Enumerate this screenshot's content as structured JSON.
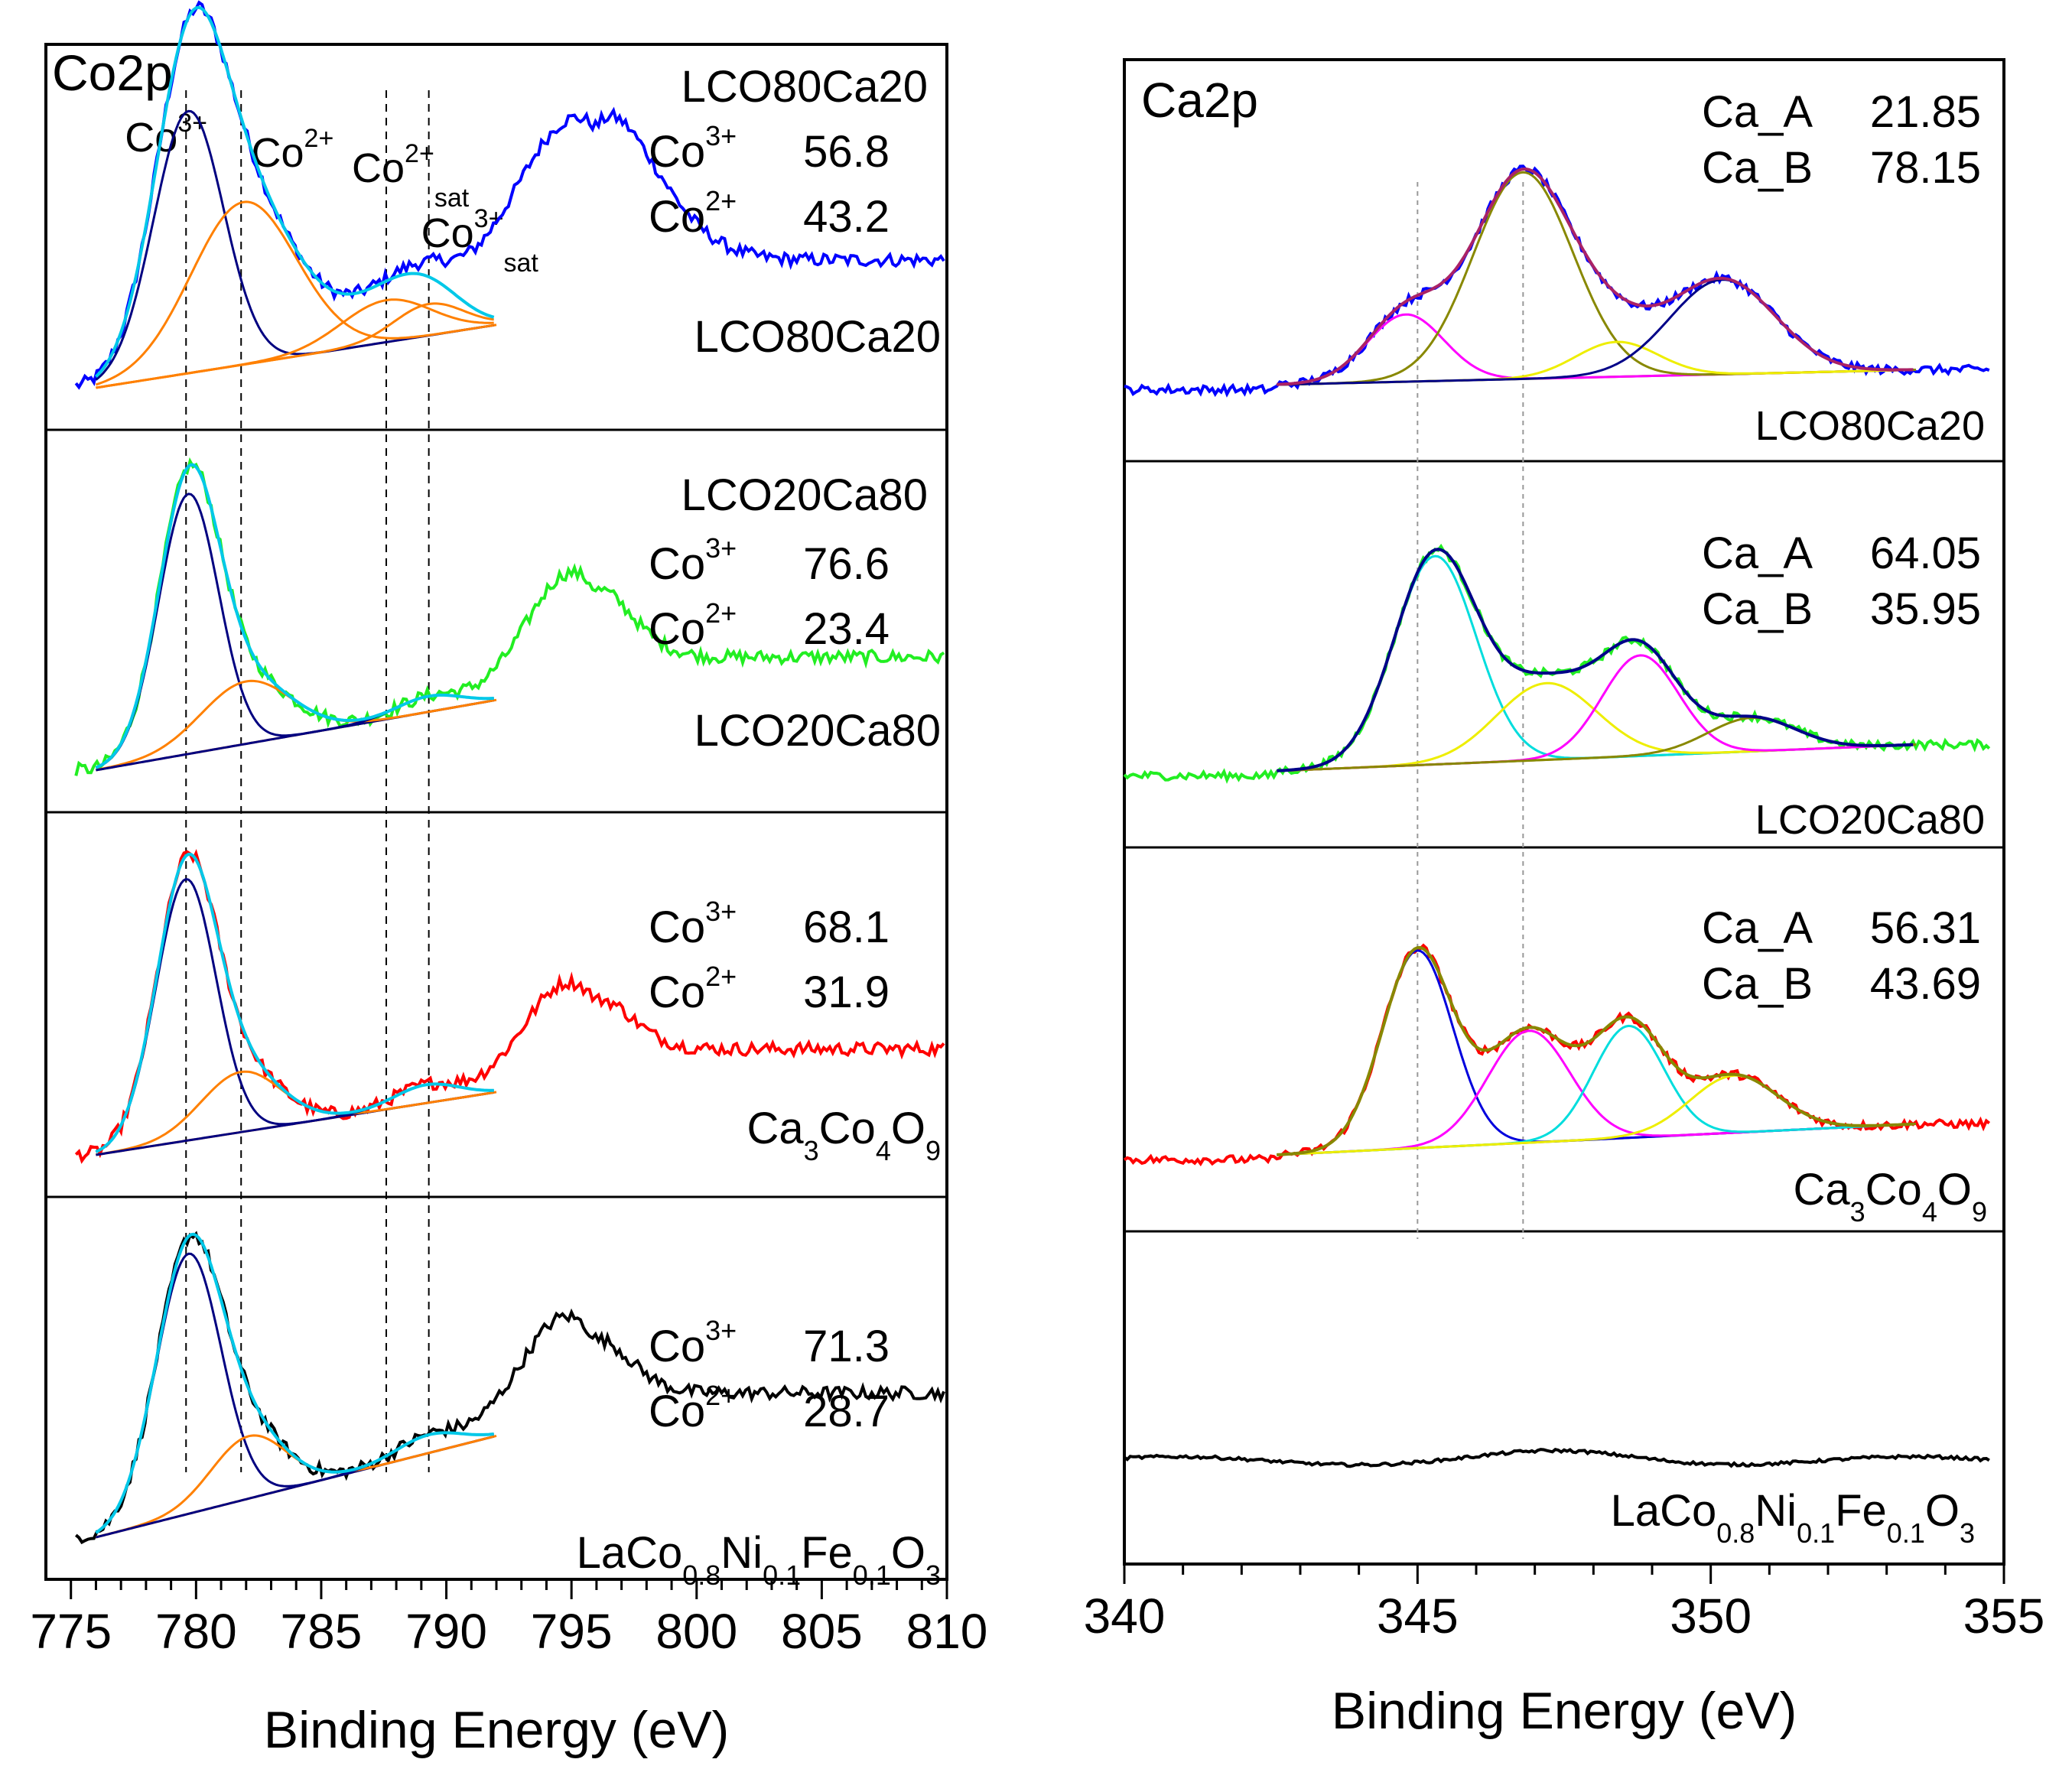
{
  "chart_data": [
    {
      "type": "line",
      "title": "Co2p",
      "xlabel": "Binding Energy (eV)",
      "xlim": [
        774,
        810
      ],
      "xticks": [
        "775",
        "780",
        "785",
        "790",
        "795",
        "800",
        "805",
        "810"
      ],
      "reference_lines": [
        779.6,
        781.8,
        787.6,
        789.3
      ],
      "peak_labels": [
        {
          "base": "Co",
          "sup": "3+",
          "sub": "",
          "color": "#0000aa"
        },
        {
          "base": "Co",
          "sup": "2+",
          "sub": "",
          "color": "#ff8000"
        },
        {
          "base": "Co",
          "sup": "2+",
          "sub": "sat",
          "color": "#ff8000"
        },
        {
          "base": "Co",
          "sup": "3+",
          "sub": "sat",
          "color": "#0000aa"
        }
      ],
      "panels": [
        {
          "sample": "LCO80Ca20",
          "header": "LCO80Ca20",
          "color": "#0000ff",
          "rows": [
            {
              "species": "Co",
              "charge": "3+",
              "value": "56.8"
            },
            {
              "species": "Co",
              "charge": "2+",
              "value": "43.2"
            }
          ],
          "peaks": [
            {
              "center": 779.7,
              "height": 1.0,
              "width": 1.4
            },
            {
              "center": 781.9,
              "height": 0.62,
              "width": 2.1
            },
            {
              "center": 787.6,
              "height": 0.16,
              "width": 1.8
            },
            {
              "center": 789.3,
              "height": 0.12,
              "width": 1.4
            }
          ],
          "satellite": {
            "center": 795.2,
            "height": 0.79,
            "width": 2.6
          },
          "baseline": [
            0.0,
            0.24
          ],
          "tail": 0.45
        },
        {
          "sample": "LCO20Ca80",
          "header": "LCO20Ca80",
          "color": "#22ee22",
          "rows": [
            {
              "species": "Co",
              "charge": "3+",
              "value": "76.6"
            },
            {
              "species": "Co",
              "charge": "2+",
              "value": "23.4"
            }
          ],
          "peaks": [
            {
              "center": 779.7,
              "height": 1.0,
              "width": 1.2
            },
            {
              "center": 782.0,
              "height": 0.24,
              "width": 1.8
            },
            {
              "center": 789.3,
              "height": 0.06,
              "width": 1.3
            }
          ],
          "satellite": {
            "center": 795.0,
            "height": 0.49,
            "width": 1.8
          },
          "baseline": [
            0.0,
            0.27
          ],
          "tail": 0.3
        },
        {
          "sample": "Ca3Co4O9",
          "header": "",
          "color": "#ff0000",
          "rows": [
            {
              "species": "Co",
              "charge": "3+",
              "value": "68.1"
            },
            {
              "species": "Co",
              "charge": "2+",
              "value": "31.9"
            }
          ],
          "peaks": [
            {
              "center": 779.6,
              "height": 1.0,
              "width": 1.2
            },
            {
              "center": 781.8,
              "height": 0.23,
              "width": 1.6
            },
            {
              "center": 789.2,
              "height": 0.07,
              "width": 1.3
            }
          ],
          "satellite": {
            "center": 794.9,
            "height": 0.42,
            "width": 1.8
          },
          "baseline": [
            0.0,
            0.24
          ],
          "tail": 0.3
        },
        {
          "sample": "LaCo0.8Ni0.1Fe0.1O3",
          "header": "",
          "color": "#000000",
          "rows": [
            {
              "species": "Co",
              "charge": "3+",
              "value": "71.3"
            },
            {
              "species": "Co",
              "charge": "2+",
              "value": "28.7"
            }
          ],
          "peaks": [
            {
              "center": 779.7,
              "height": 1.0,
              "width": 1.3
            },
            {
              "center": 782.1,
              "height": 0.24,
              "width": 1.5
            },
            {
              "center": 789.3,
              "height": 0.07,
              "width": 1.3
            }
          ],
          "satellite": {
            "center": 794.8,
            "height": 0.46,
            "width": 1.8
          },
          "baseline": [
            0.0,
            0.39
          ],
          "tail": 0.3
        }
      ]
    },
    {
      "type": "line",
      "title": "Ca2p",
      "xlabel": "Binding Energy (eV)",
      "xlim": [
        340,
        355
      ],
      "xticks": [
        "340",
        "345",
        "350",
        "355"
      ],
      "reference_lines": [
        345.0,
        346.8
      ],
      "panels": [
        {
          "sample": "LCO80Ca20",
          "color": "#0000ff",
          "rows": [
            {
              "species": "Ca_A",
              "value": "21.85"
            },
            {
              "species": "Ca_B",
              "value": "78.15"
            }
          ],
          "components": [
            {
              "center": 344.8,
              "height": 0.27,
              "width": 0.65,
              "color": "#ff00ff"
            },
            {
              "center": 346.8,
              "height": 0.83,
              "width": 0.85,
              "color": "#888800"
            },
            {
              "center": 348.4,
              "height": 0.14,
              "width": 0.7,
              "color": "#eeee00"
            },
            {
              "center": 350.2,
              "height": 0.38,
              "width": 0.9,
              "color": "#000088"
            }
          ],
          "envelope_color": "#aa2266",
          "baseline": [
            0.0,
            0.06
          ]
        },
        {
          "sample": "LCO20Ca80",
          "color": "#22ee22",
          "rows": [
            {
              "species": "Ca_A",
              "value": "64.05"
            },
            {
              "species": "Ca_B",
              "value": "35.95"
            }
          ],
          "components": [
            {
              "center": 345.3,
              "height": 0.87,
              "width": 0.7,
              "color": "#00dddd"
            },
            {
              "center": 347.2,
              "height": 0.32,
              "width": 0.85,
              "color": "#eeee00"
            },
            {
              "center": 348.8,
              "height": 0.42,
              "width": 0.65,
              "color": "#ff00ff"
            },
            {
              "center": 350.7,
              "height": 0.14,
              "width": 0.75,
              "color": "#888800"
            }
          ],
          "envelope_color": "#000088",
          "baseline": [
            0.0,
            0.11
          ]
        },
        {
          "sample": "Ca3Co4O9",
          "color": "#ff0000",
          "rows": [
            {
              "species": "Ca_A",
              "value": "56.31"
            },
            {
              "species": "Ca_B",
              "value": "43.69"
            }
          ],
          "components": [
            {
              "center": 345.0,
              "height": 0.83,
              "width": 0.6,
              "color": "#0000dd"
            },
            {
              "center": 346.9,
              "height": 0.47,
              "width": 0.7,
              "color": "#ff00ff"
            },
            {
              "center": 348.6,
              "height": 0.47,
              "width": 0.6,
              "color": "#00dddd"
            },
            {
              "center": 350.4,
              "height": 0.24,
              "width": 0.75,
              "color": "#eeee00"
            }
          ],
          "envelope_color": "#888800",
          "baseline": [
            0.0,
            0.13
          ]
        },
        {
          "sample": "LaCo0.8Ni0.1Fe0.1O3",
          "color": "#000000",
          "rows": [],
          "components": [],
          "envelope_color": "",
          "baseline": [
            0.0,
            0.0
          ]
        }
      ]
    }
  ],
  "labels": {
    "lco80": "LCO80Ca20",
    "lco20": "LCO20Ca80",
    "ca3_Ca": "Ca",
    "ca3_3": "3",
    "ca3_Co": "Co",
    "ca3_4": "4",
    "ca3_O": "O",
    "ca3_9": "9",
    "la_La": "LaCo",
    "la_08": "0.8",
    "la_Ni": "Ni",
    "la_01a": "0.1",
    "la_Fe": "Fe",
    "la_01b": "0.1",
    "la_O": "O",
    "la_3": "3"
  }
}
